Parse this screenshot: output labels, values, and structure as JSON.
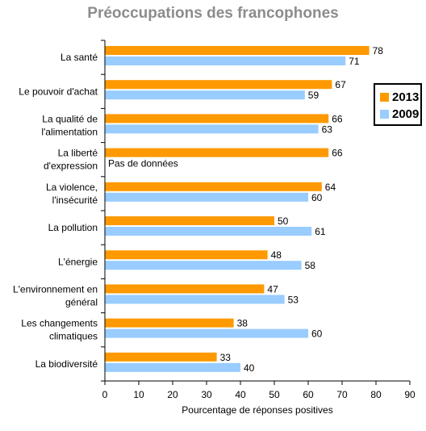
{
  "chart_data": {
    "type": "bar",
    "orientation": "horizontal",
    "title": "Préoccupations des francophones",
    "xlabel": "Pourcentage de réponses positives",
    "xlim": [
      0,
      90
    ],
    "xticks": [
      0,
      10,
      20,
      30,
      40,
      50,
      60,
      70,
      80,
      90
    ],
    "categories": [
      "La santé",
      "Le pouvoir d'achat",
      "La qualité de l'alimentation",
      "La liberté d'expression",
      "La violence, l'insécurité",
      "La pollution",
      "L'énergie",
      "L'environnement en général",
      "Les changements climatiques",
      "La biodiversité"
    ],
    "category_lines": [
      [
        "La santé"
      ],
      [
        "Le pouvoir d'achat"
      ],
      [
        "La qualité de",
        "l'alimentation"
      ],
      [
        "La liberté",
        "d'expression"
      ],
      [
        "La violence,",
        "l'insécurité"
      ],
      [
        "La pollution"
      ],
      [
        "L'énergie"
      ],
      [
        "L'environnement en",
        "général"
      ],
      [
        "Les changements",
        "climatiques"
      ],
      [
        "La biodiversité"
      ]
    ],
    "series": [
      {
        "name": "2013",
        "color": "#ff9900",
        "values": [
          78,
          67,
          66,
          66,
          64,
          50,
          48,
          47,
          38,
          33
        ]
      },
      {
        "name": "2009",
        "color": "#99ccff",
        "values": [
          71,
          59,
          63,
          null,
          60,
          61,
          58,
          53,
          60,
          40
        ]
      }
    ],
    "missing_label": "Pas de données",
    "legend_position": "right",
    "grid": false
  }
}
